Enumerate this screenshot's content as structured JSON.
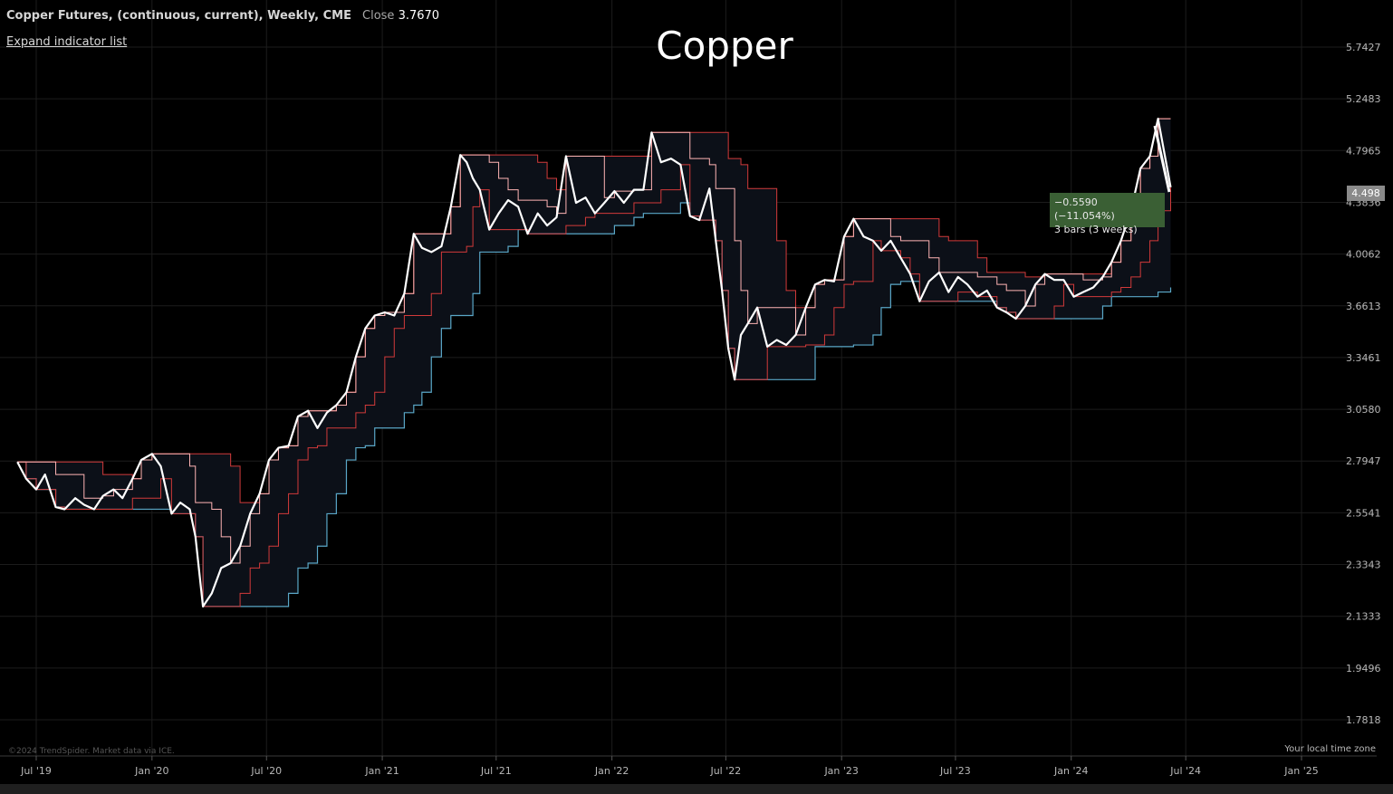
{
  "header": {
    "symbol_text": "Copper Futures, (continuous, current), Weekly, CME",
    "close_label": "Close",
    "close_value": "3.7670"
  },
  "expand_label": "Expand indicator list",
  "credit": "©2024 TrendSpider. Market data via ICE.",
  "timezone_label": "Your local time zone",
  "price_tag": "4.498",
  "measure": {
    "line1": "−0.5590 (−11.054%)",
    "line2": "3 bars (3 weeks)"
  },
  "colors": {
    "background": "#000000",
    "price_line": "#ffffff",
    "upper_band": "#ffb4b4",
    "lower_band": "#5aa7c7",
    "mid_lines": "#d23a3a",
    "grid": "#1c1c1c",
    "measure_box": "#3a5f34"
  },
  "chart_data": {
    "type": "line",
    "title": "Copper",
    "xlabel": "",
    "ylabel": "",
    "x_ticks": [
      "Jul '19",
      "Jan '20",
      "Jul '20",
      "Jan '21",
      "Jul '21",
      "Jan '22",
      "Jul '22",
      "Jan '23",
      "Jul '23",
      "Jan '24",
      "Jul '24",
      "Jan '25"
    ],
    "y_ticks": [
      "5.7427",
      "5.2483",
      "4.7965",
      "4.3836",
      "4.0062",
      "3.6613",
      "3.3461",
      "3.0580",
      "2.7947",
      "2.5541",
      "2.3343",
      "2.1333",
      "1.9496",
      "1.7818"
    ],
    "ylim": [
      1.7818,
      5.7427
    ],
    "xlim": [
      "2019-06-01",
      "2025-03-01"
    ],
    "log_scale": true,
    "grid": true,
    "series": [
      {
        "values": [
          [
            "2019-06-01",
            2.79
          ],
          [
            "2019-06-15",
            2.71
          ],
          [
            "2019-07-01",
            2.66
          ],
          [
            "2019-07-15",
            2.73
          ],
          [
            "2019-08-01",
            2.58
          ],
          [
            "2019-08-15",
            2.57
          ],
          [
            "2019-09-01",
            2.62
          ],
          [
            "2019-09-15",
            2.59
          ],
          [
            "2019-10-01",
            2.57
          ],
          [
            "2019-10-15",
            2.63
          ],
          [
            "2019-11-01",
            2.66
          ],
          [
            "2019-11-15",
            2.62
          ],
          [
            "2019-12-01",
            2.71
          ],
          [
            "2019-12-15",
            2.8
          ],
          [
            "2020-01-01",
            2.83
          ],
          [
            "2020-01-15",
            2.77
          ],
          [
            "2020-02-01",
            2.55
          ],
          [
            "2020-02-15",
            2.6
          ],
          [
            "2020-03-01",
            2.57
          ],
          [
            "2020-03-10",
            2.45
          ],
          [
            "2020-03-22",
            2.17
          ],
          [
            "2020-04-05",
            2.22
          ],
          [
            "2020-04-20",
            2.32
          ],
          [
            "2020-05-05",
            2.34
          ],
          [
            "2020-05-20",
            2.41
          ],
          [
            "2020-06-05",
            2.55
          ],
          [
            "2020-06-20",
            2.64
          ],
          [
            "2020-07-05",
            2.8
          ],
          [
            "2020-07-20",
            2.86
          ],
          [
            "2020-08-05",
            2.87
          ],
          [
            "2020-08-20",
            3.02
          ],
          [
            "2020-09-05",
            3.05
          ],
          [
            "2020-09-20",
            2.96
          ],
          [
            "2020-10-05",
            3.04
          ],
          [
            "2020-10-20",
            3.08
          ],
          [
            "2020-11-05",
            3.15
          ],
          [
            "2020-11-20",
            3.35
          ],
          [
            "2020-12-05",
            3.52
          ],
          [
            "2020-12-20",
            3.6
          ],
          [
            "2021-01-05",
            3.62
          ],
          [
            "2021-01-20",
            3.6
          ],
          [
            "2021-02-05",
            3.74
          ],
          [
            "2021-02-20",
            4.15
          ],
          [
            "2021-03-05",
            4.05
          ],
          [
            "2021-03-20",
            4.02
          ],
          [
            "2021-04-05",
            4.06
          ],
          [
            "2021-04-20",
            4.35
          ],
          [
            "2021-05-05",
            4.76
          ],
          [
            "2021-05-15",
            4.7
          ],
          [
            "2021-05-25",
            4.57
          ],
          [
            "2021-06-05",
            4.48
          ],
          [
            "2021-06-20",
            4.18
          ],
          [
            "2021-07-05",
            4.3
          ],
          [
            "2021-07-20",
            4.4
          ],
          [
            "2021-08-05",
            4.35
          ],
          [
            "2021-08-20",
            4.15
          ],
          [
            "2021-09-05",
            4.3
          ],
          [
            "2021-09-20",
            4.21
          ],
          [
            "2021-10-05",
            4.27
          ],
          [
            "2021-10-20",
            4.75
          ],
          [
            "2021-11-05",
            4.38
          ],
          [
            "2021-11-20",
            4.42
          ],
          [
            "2021-12-05",
            4.3
          ],
          [
            "2021-12-20",
            4.38
          ],
          [
            "2022-01-05",
            4.47
          ],
          [
            "2022-01-20",
            4.38
          ],
          [
            "2022-02-05",
            4.48
          ],
          [
            "2022-02-20",
            4.48
          ],
          [
            "2022-03-05",
            4.95
          ],
          [
            "2022-03-20",
            4.7
          ],
          [
            "2022-04-05",
            4.73
          ],
          [
            "2022-04-20",
            4.68
          ],
          [
            "2022-05-05",
            4.28
          ],
          [
            "2022-05-20",
            4.25
          ],
          [
            "2022-06-05",
            4.49
          ],
          [
            "2022-06-15",
            4.1
          ],
          [
            "2022-06-25",
            3.76
          ],
          [
            "2022-07-05",
            3.4
          ],
          [
            "2022-07-15",
            3.22
          ],
          [
            "2022-07-25",
            3.48
          ],
          [
            "2022-08-05",
            3.55
          ],
          [
            "2022-08-20",
            3.65
          ],
          [
            "2022-09-05",
            3.41
          ],
          [
            "2022-09-20",
            3.45
          ],
          [
            "2022-10-05",
            3.42
          ],
          [
            "2022-10-20",
            3.48
          ],
          [
            "2022-11-05",
            3.65
          ],
          [
            "2022-11-20",
            3.8
          ],
          [
            "2022-12-05",
            3.83
          ],
          [
            "2022-12-20",
            3.82
          ],
          [
            "2023-01-05",
            4.13
          ],
          [
            "2023-01-20",
            4.26
          ],
          [
            "2023-02-05",
            4.13
          ],
          [
            "2023-02-20",
            4.1
          ],
          [
            "2023-03-05",
            4.03
          ],
          [
            "2023-03-20",
            4.1
          ],
          [
            "2023-04-05",
            3.98
          ],
          [
            "2023-04-20",
            3.87
          ],
          [
            "2023-05-05",
            3.69
          ],
          [
            "2023-05-20",
            3.82
          ],
          [
            "2023-06-05",
            3.88
          ],
          [
            "2023-06-20",
            3.75
          ],
          [
            "2023-07-05",
            3.85
          ],
          [
            "2023-07-20",
            3.8
          ],
          [
            "2023-08-05",
            3.72
          ],
          [
            "2023-08-20",
            3.76
          ],
          [
            "2023-09-05",
            3.65
          ],
          [
            "2023-09-20",
            3.62
          ],
          [
            "2023-10-05",
            3.58
          ],
          [
            "2023-10-20",
            3.66
          ],
          [
            "2023-11-05",
            3.8
          ],
          [
            "2023-11-20",
            3.87
          ],
          [
            "2023-12-05",
            3.83
          ],
          [
            "2023-12-20",
            3.83
          ],
          [
            "2024-01-05",
            3.72
          ],
          [
            "2024-01-20",
            3.75
          ],
          [
            "2024-02-05",
            3.78
          ],
          [
            "2024-02-20",
            3.85
          ],
          [
            "2024-03-05",
            3.95
          ],
          [
            "2024-03-20",
            4.1
          ],
          [
            "2024-04-05",
            4.32
          ],
          [
            "2024-04-20",
            4.65
          ],
          [
            "2024-05-05",
            4.75
          ],
          [
            "2024-05-18",
            5.07
          ],
          [
            "2024-06-07",
            4.5
          ]
        ]
      }
    ]
  }
}
